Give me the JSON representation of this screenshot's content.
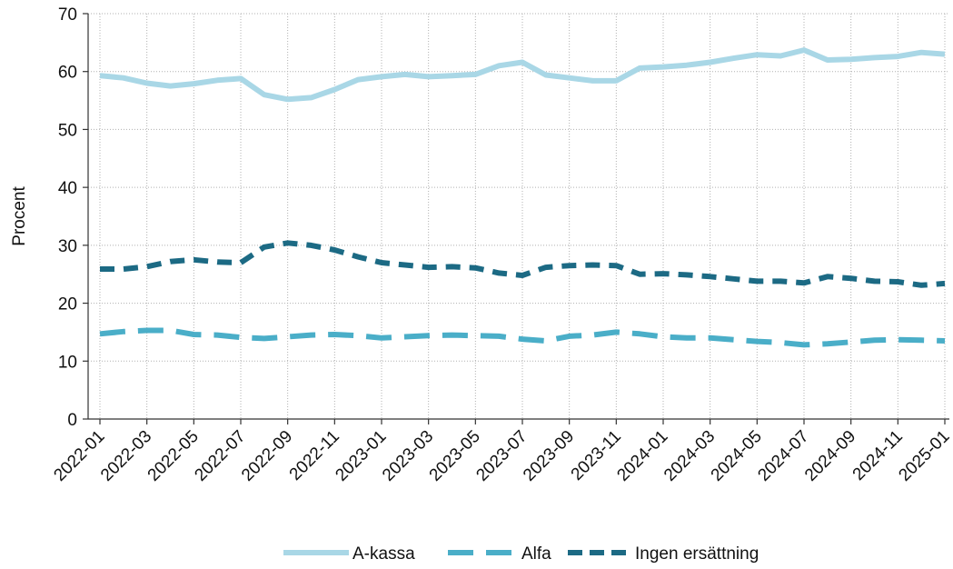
{
  "chart_data": {
    "type": "line",
    "ylabel": "Procent",
    "xlabel": "",
    "ylim": [
      0,
      70
    ],
    "yticks": [
      0,
      10,
      20,
      30,
      40,
      50,
      60,
      70
    ],
    "x_tick_labels": [
      "2022-01",
      "2022-03",
      "2022-05",
      "2022-07",
      "2022-09",
      "2022-11",
      "2023-01",
      "2023-03",
      "2023-05",
      "2023-07",
      "2023-09",
      "2023-11",
      "2024-01",
      "2024-03",
      "2024-05",
      "2024-07",
      "2024-09",
      "2024-11",
      "2025-01"
    ],
    "x": [
      "2022-01",
      "2022-02",
      "2022-03",
      "2022-04",
      "2022-05",
      "2022-06",
      "2022-07",
      "2022-08",
      "2022-09",
      "2022-10",
      "2022-11",
      "2022-12",
      "2023-01",
      "2023-02",
      "2023-03",
      "2023-04",
      "2023-05",
      "2023-06",
      "2023-07",
      "2023-08",
      "2023-09",
      "2023-10",
      "2023-11",
      "2023-12",
      "2024-01",
      "2024-02",
      "2024-03",
      "2024-04",
      "2024-05",
      "2024-06",
      "2024-07",
      "2024-08",
      "2024-09",
      "2024-10",
      "2024-11",
      "2024-12",
      "2025-01"
    ],
    "grid": true,
    "legend_position": "bottom",
    "series": [
      {
        "name": "A-kassa",
        "color": "#a9d7e6",
        "style": "solid",
        "values": [
          59.3,
          58.9,
          58.0,
          57.5,
          57.9,
          58.5,
          58.8,
          56.0,
          55.2,
          55.5,
          56.9,
          58.6,
          59.1,
          59.5,
          59.1,
          59.3,
          59.5,
          61.0,
          61.6,
          59.4,
          58.9,
          58.4,
          58.4,
          60.6,
          60.8,
          61.1,
          61.6,
          62.3,
          62.9,
          62.7,
          63.7,
          62.0,
          62.1,
          62.4,
          62.6,
          63.3,
          63.0
        ]
      },
      {
        "name": "Alfa",
        "color": "#4aaec8",
        "style": "long-dash",
        "values": [
          14.7,
          15.1,
          15.3,
          15.3,
          14.6,
          14.5,
          14.1,
          13.9,
          14.2,
          14.5,
          14.6,
          14.4,
          14.0,
          14.2,
          14.4,
          14.5,
          14.4,
          14.3,
          13.8,
          13.5,
          14.3,
          14.5,
          15.0,
          14.7,
          14.2,
          14.0,
          14.0,
          13.7,
          13.4,
          13.2,
          12.8,
          13.0,
          13.3,
          13.6,
          13.7,
          13.6,
          13.5
        ]
      },
      {
        "name": "Ingen ersättning",
        "color": "#1c6a84",
        "style": "dash",
        "values": [
          25.9,
          25.9,
          26.3,
          27.2,
          27.5,
          27.1,
          27.0,
          29.7,
          30.4,
          30.0,
          29.2,
          28.0,
          27.0,
          26.6,
          26.2,
          26.3,
          26.1,
          25.2,
          24.8,
          26.2,
          26.5,
          26.6,
          26.5,
          25.0,
          25.1,
          24.9,
          24.6,
          24.2,
          23.8,
          23.8,
          23.5,
          24.6,
          24.3,
          23.8,
          23.7,
          23.1,
          23.4
        ]
      }
    ]
  }
}
